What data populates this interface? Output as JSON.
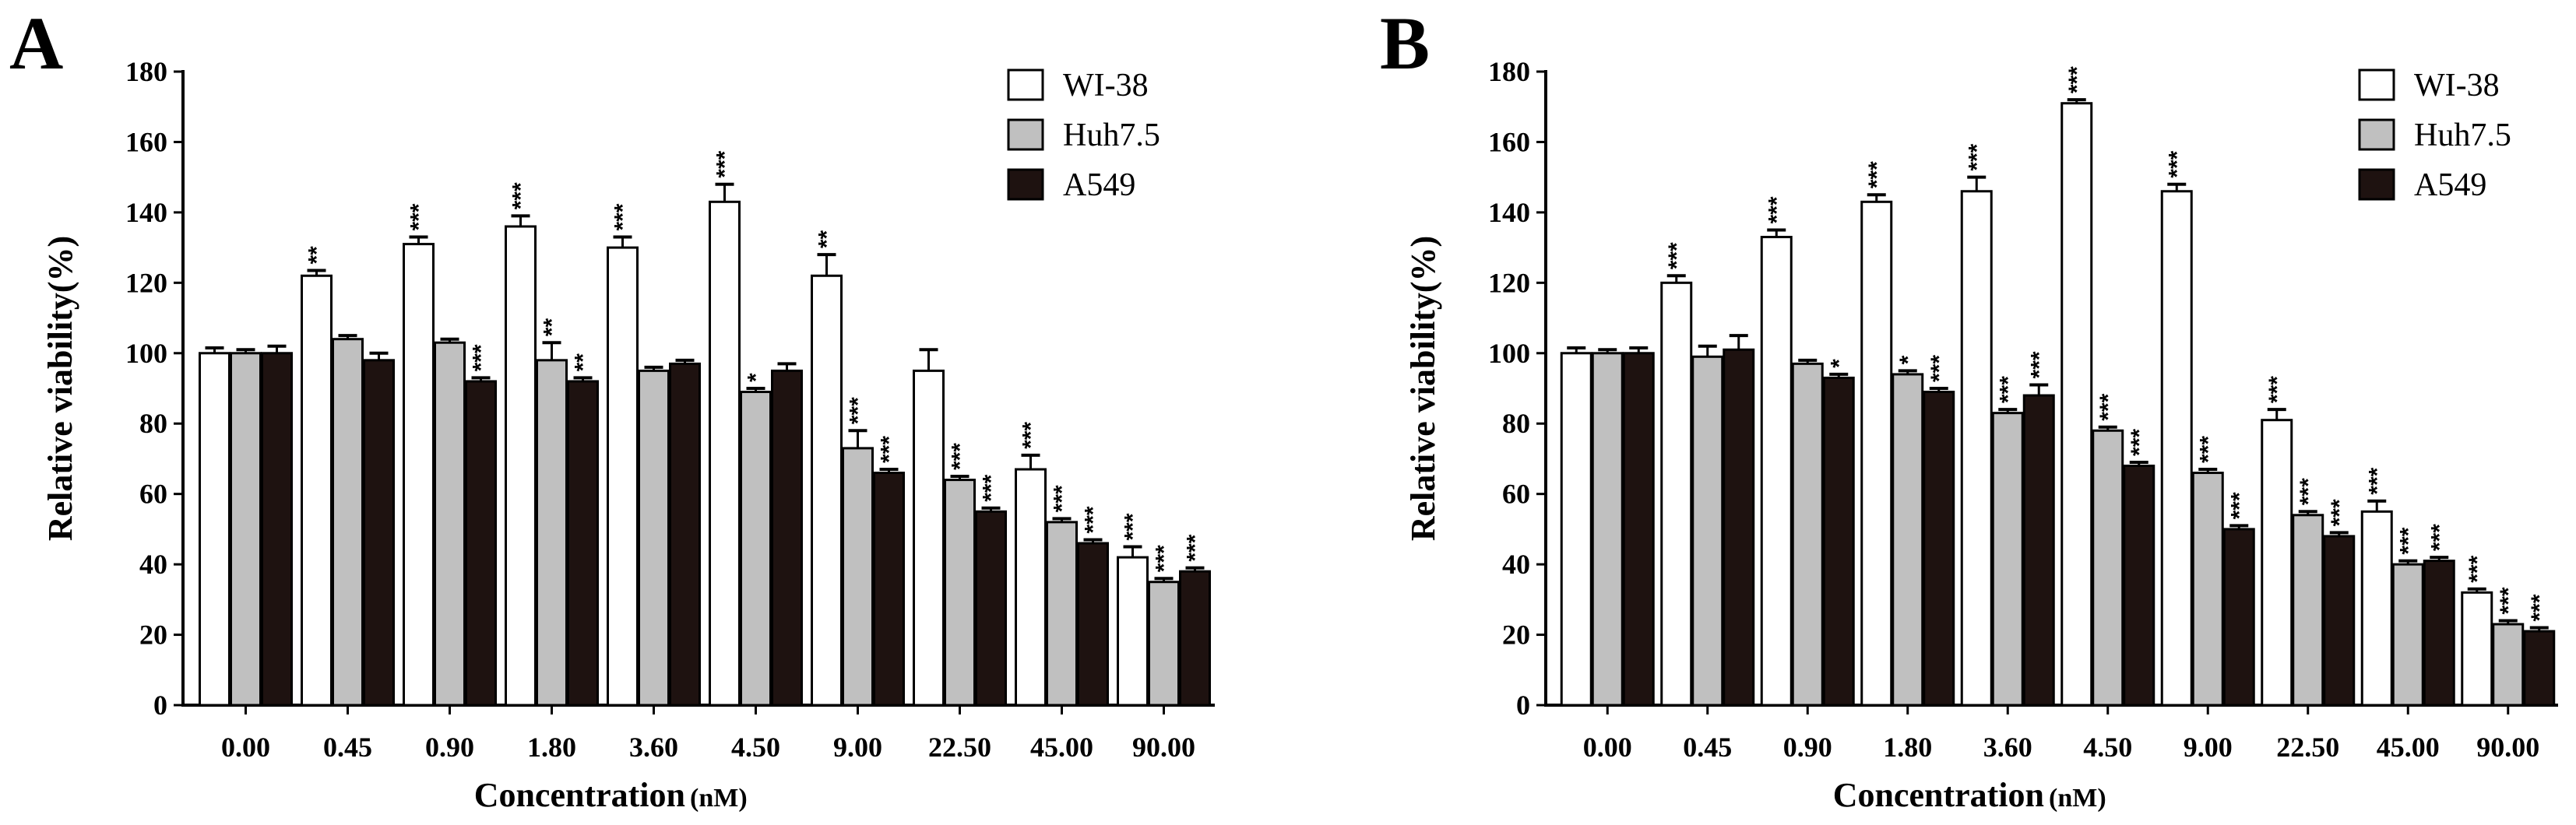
{
  "chart_data": [
    {
      "panel": "A",
      "type": "bar",
      "xlabel": "Concentration",
      "xunit": "(nM)",
      "ylabel": "Relative viability(%)",
      "ylim": [
        0,
        180
      ],
      "yticks": [
        "0",
        "20",
        "40",
        "60",
        "80",
        "100",
        "120",
        "140",
        "160",
        "180"
      ],
      "categories": [
        "0.00",
        "0.45",
        "0.90",
        "1.80",
        "3.60",
        "4.50",
        "9.00",
        "22.50",
        "45.00",
        "90.00"
      ],
      "series": [
        {
          "name": "WI-38",
          "values": [
            100,
            122,
            131,
            136,
            130,
            143,
            122,
            95,
            67,
            42
          ],
          "errors": [
            1.5,
            1.5,
            2,
            3,
            3,
            5,
            6,
            6,
            4,
            3
          ],
          "sig": [
            "",
            "**",
            "***",
            "***",
            "***",
            "***",
            "**",
            "",
            "***",
            "***"
          ]
        },
        {
          "name": "Huh7.5",
          "values": [
            100,
            104,
            103,
            98,
            95,
            89,
            73,
            64,
            52,
            35
          ],
          "errors": [
            1,
            1,
            1,
            5,
            1,
            1,
            5,
            1,
            1,
            1
          ],
          "sig": [
            "",
            "",
            "",
            "**",
            "",
            "*",
            "***",
            "***",
            "***",
            "***"
          ]
        },
        {
          "name": "A549",
          "values": [
            100,
            98,
            92,
            92,
            97,
            95,
            66,
            55,
            46,
            38
          ],
          "errors": [
            2,
            2,
            1,
            1,
            1,
            2,
            1,
            1,
            1,
            1
          ],
          "sig": [
            "",
            "",
            "***",
            "**",
            "",
            "",
            "***",
            "***",
            "***",
            "***"
          ]
        }
      ],
      "legend_position": "top-right"
    },
    {
      "panel": "B",
      "type": "bar",
      "xlabel": "Concentration",
      "xunit": "(nM)",
      "ylabel": "Relative viability(%)",
      "ylim": [
        0,
        180
      ],
      "yticks": [
        "0",
        "20",
        "40",
        "60",
        "80",
        "100",
        "120",
        "140",
        "160",
        "180"
      ],
      "categories": [
        "0.00",
        "0.45",
        "0.90",
        "1.80",
        "3.60",
        "4.50",
        "9.00",
        "22.50",
        "45.00",
        "90.00"
      ],
      "series": [
        {
          "name": "WI-38",
          "values": [
            100,
            120,
            133,
            143,
            146,
            171,
            146,
            81,
            55,
            32
          ],
          "errors": [
            1.5,
            2,
            2,
            2,
            4,
            1,
            2,
            3,
            3,
            1
          ],
          "sig": [
            "",
            "***",
            "***",
            "***",
            "***",
            "***",
            "***",
            "***",
            "***",
            "***"
          ]
        },
        {
          "name": "Huh7.5",
          "values": [
            100,
            99,
            97,
            94,
            83,
            78,
            66,
            54,
            40,
            23
          ],
          "errors": [
            1,
            3,
            1,
            1,
            1,
            1,
            1,
            1,
            1,
            1
          ],
          "sig": [
            "",
            "",
            "",
            "*",
            "***",
            "***",
            "***",
            "***",
            "***",
            "***"
          ]
        },
        {
          "name": "A549",
          "values": [
            100,
            101,
            93,
            89,
            88,
            68,
            50,
            48,
            41,
            21
          ],
          "errors": [
            1.5,
            4,
            1,
            1,
            3,
            1,
            1,
            1,
            1,
            1
          ],
          "sig": [
            "",
            "",
            "*",
            "***",
            "***",
            "***",
            "***",
            "***",
            "***",
            "***"
          ]
        }
      ],
      "legend_position": "top-right"
    }
  ],
  "colors": {
    "WI-38": "#ffffff",
    "Huh7.5": "#c0c0c0",
    "A549": "#1e1210"
  }
}
